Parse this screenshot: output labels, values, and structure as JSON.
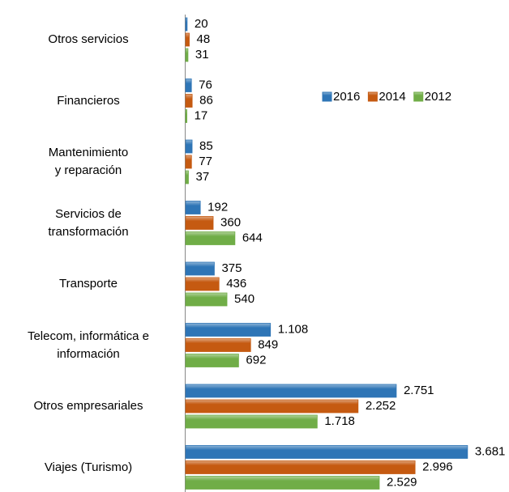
{
  "chart_data": {
    "type": "hbar",
    "categories": [
      "Otros servicios",
      "Financieros",
      "Mantenimiento\ny reparación",
      "Servicios de\ntransformación",
      "Transporte",
      "Telecom, informática e\ninformación",
      "Otros empresariales",
      "Viajes (Turismo)"
    ],
    "series": [
      {
        "name": "2016",
        "color": "#2e75b6",
        "values": [
          20,
          76,
          85,
          192,
          375,
          1108,
          2751,
          3681
        ],
        "value_labels": [
          "20",
          "76",
          "85",
          "192",
          "375",
          "1.108",
          "2.751",
          "3.681"
        ]
      },
      {
        "name": "2014",
        "color": "#c55a11",
        "values": [
          48,
          86,
          77,
          360,
          436,
          849,
          2252,
          2996
        ],
        "value_labels": [
          "48",
          "86",
          "77",
          "360",
          "436",
          "849",
          "2.252",
          "2.996"
        ]
      },
      {
        "name": "2012",
        "color": "#70ad47",
        "values": [
          31,
          17,
          37,
          644,
          540,
          692,
          1718,
          2529
        ],
        "value_labels": [
          "31",
          "17",
          "37",
          "644",
          "540",
          "692",
          "1.718",
          "2.529"
        ]
      }
    ],
    "xlim": [
      0,
      4000
    ],
    "legend": "right"
  }
}
